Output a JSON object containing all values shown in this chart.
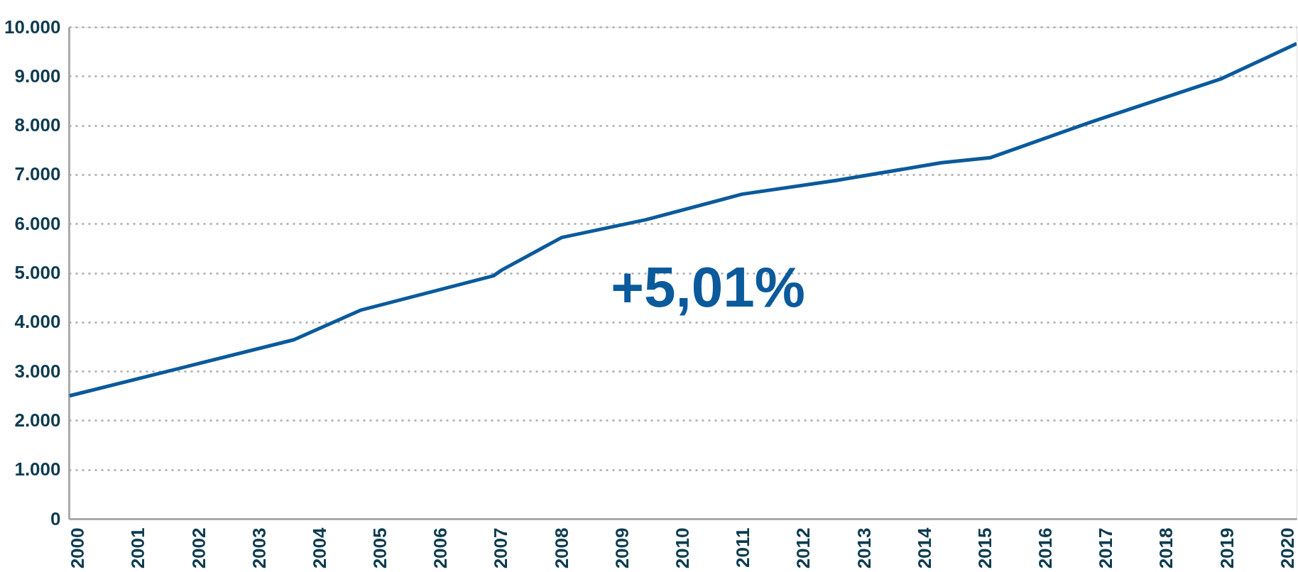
{
  "chart_data": {
    "type": "line",
    "annotations": [
      "+5,01%"
    ],
    "x": [
      1999.86,
      2003.57,
      2004.67,
      2006.87,
      2007.01,
      2008.0,
      2009.39,
      2010.98,
      2012.54,
      2014.28,
      2015.08,
      2016.78,
      2018.91,
      2020.15
    ],
    "series": [
      {
        "color": "#0a5a9c",
        "values": [
          2500,
          3640,
          4240,
          4940,
          5060,
          5720,
          6080,
          6600,
          6880,
          7240,
          7340,
          8080,
          8950,
          9660
        ]
      }
    ],
    "xlim": [
      1999.85,
      2020.15
    ],
    "xticks": [
      2000,
      2001,
      2002,
      2003,
      2004,
      2005,
      2006,
      2007,
      2008,
      2009,
      2010,
      2011,
      2012,
      2013,
      2014,
      2015,
      2016,
      2017,
      2018,
      2019,
      2020
    ],
    "ylim": [
      0,
      10000
    ],
    "yticks": [
      0,
      {
        "value": 1000,
        "label": "1.000"
      },
      {
        "value": 2000,
        "label": "2.000"
      },
      {
        "value": 3000,
        "label": "3.000"
      },
      {
        "value": 4000,
        "label": "4.000"
      },
      {
        "value": 5000,
        "label": "5.000"
      },
      {
        "value": 6000,
        "label": "6.000"
      },
      {
        "value": 7000,
        "label": "7.000"
      },
      {
        "value": 8000,
        "label": "8.000"
      },
      {
        "value": 9000,
        "label": "9.000"
      },
      {
        "value": 10000,
        "label": "10.000"
      }
    ],
    "grid": "y",
    "legend": false,
    "marker": "none",
    "line_style": "solid"
  }
}
